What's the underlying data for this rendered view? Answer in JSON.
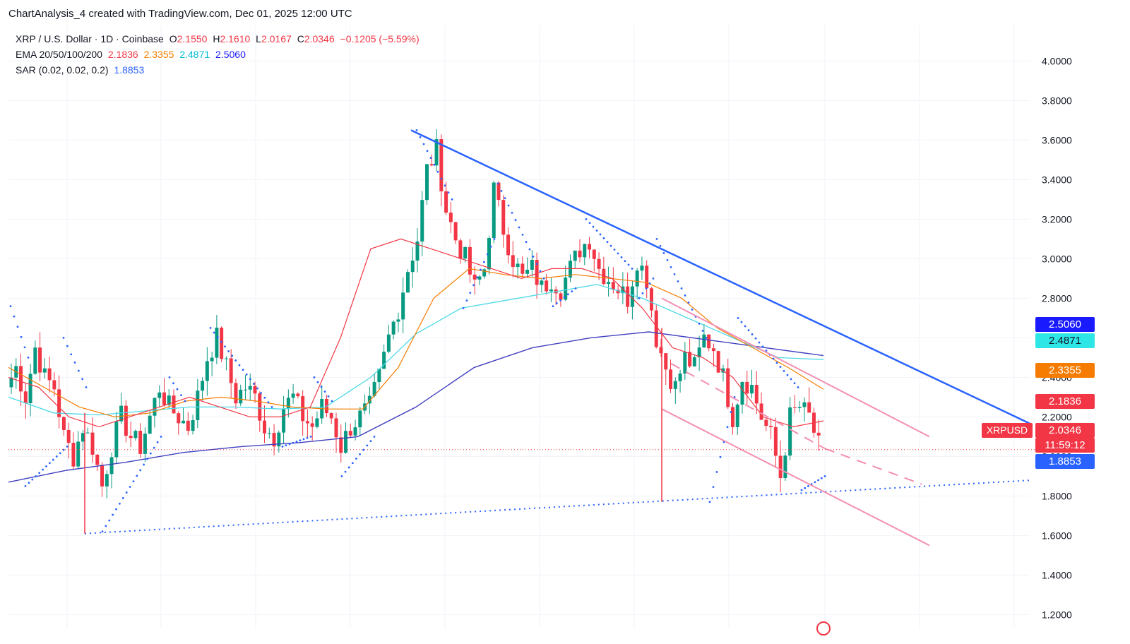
{
  "header": {
    "title": "ChartAnalysis_4 created with TradingView.com, Dec 01, 2025 12:00 UTC"
  },
  "legend": {
    "symbol": "XRP / U.S. Dollar · 1D · Coinbase",
    "o_label": "O",
    "o_value": "2.1550",
    "h_label": "H",
    "h_value": "2.1610",
    "l_label": "L",
    "l_value": "2.0167",
    "c_label": "C",
    "c_value": "2.0346",
    "change": "−0.1205 (−5.59%)",
    "ema_label": "EMA 20/50/100/200",
    "ema20": "2.1836",
    "ema50": "2.3355",
    "ema100": "2.4871",
    "ema200": "2.5060",
    "sar_label": "SAR (0.02, 0.02, 0.2)",
    "sar_value": "1.8853"
  },
  "price_tags": {
    "ema200": "2.5060",
    "ema100": "2.4871",
    "ema50": "2.3355",
    "ema20": "2.1836",
    "symbol": "XRPUSD",
    "last": "2.0346",
    "countdown": "11:59:12",
    "sar": "1.8853"
  },
  "colors": {
    "up": "#089981",
    "down": "#f23645",
    "ema20": "#f23645",
    "ema50": "#f57c00",
    "ema100": "#4dd9e8",
    "ema200": "#3f3fbf",
    "sar": "#2962ff",
    "trend_blue": "#2962ff",
    "channel": "#f48fb1"
  },
  "chart_data": {
    "type": "candlestick",
    "y_axis": {
      "ticks": [
        "4.0000",
        "3.8000",
        "3.6000",
        "3.4000",
        "3.2000",
        "3.0000",
        "2.8000",
        "2.6000",
        "2.4000",
        "2.2000",
        "2.0000",
        "1.8000",
        "1.6000",
        "1.4000",
        "1.2000"
      ],
      "range": [
        1.13,
        4.18
      ]
    },
    "ohlc_path": [
      2.35,
      2.45,
      2.3,
      2.55,
      2.4,
      2.35,
      2.1,
      2.0,
      2.15,
      2.05,
      1.85,
      2.05,
      2.2,
      2.1,
      2.05,
      2.2,
      2.35,
      2.25,
      2.2,
      2.15,
      2.3,
      2.5,
      2.6,
      2.45,
      2.3,
      2.35,
      2.3,
      2.15,
      2.1,
      2.25,
      2.3,
      2.2,
      2.15,
      2.25,
      2.2,
      2.05,
      2.15,
      2.2,
      2.25,
      2.4,
      2.6,
      2.75,
      2.95,
      3.1,
      3.45,
      3.55,
      3.25,
      3.1,
      3.0,
      2.85,
      2.95,
      3.35,
      3.15,
      3.0,
      2.9,
      2.95,
      2.85,
      2.9,
      2.85,
      2.95,
      3.05,
      3.1,
      2.95,
      2.9,
      2.85,
      2.8,
      3.0,
      2.9,
      2.6,
      2.45,
      2.35,
      2.5,
      2.45,
      2.6,
      2.55,
      2.4,
      2.2,
      2.4,
      2.35,
      2.2,
      2.1,
      1.9,
      2.2,
      2.25,
      2.2,
      2.05
    ],
    "ema20_path": [
      2.4,
      2.35,
      2.2,
      2.15,
      2.2,
      2.25,
      2.3,
      2.25,
      2.2,
      2.2,
      2.25,
      2.6,
      3.05,
      3.1,
      3.05,
      3.0,
      2.95,
      2.9,
      2.95,
      2.95,
      2.9,
      2.75,
      2.55,
      2.5,
      2.4,
      2.2,
      2.15,
      2.18
    ],
    "ema50_path": [
      2.45,
      2.35,
      2.25,
      2.2,
      2.22,
      2.28,
      2.3,
      2.28,
      2.25,
      2.24,
      2.24,
      2.45,
      2.8,
      2.95,
      2.92,
      2.9,
      2.92,
      2.9,
      2.88,
      2.8,
      2.65,
      2.55,
      2.45,
      2.34
    ],
    "ema100_path": [
      2.3,
      2.22,
      2.21,
      2.23,
      2.25,
      2.25,
      2.24,
      2.25,
      2.4,
      2.62,
      2.75,
      2.79,
      2.83,
      2.87,
      2.8,
      2.7,
      2.6,
      2.5,
      2.49
    ],
    "ema200_path": [
      1.87,
      1.93,
      1.97,
      2.02,
      2.05,
      2.07,
      2.1,
      2.25,
      2.45,
      2.55,
      2.6,
      2.63,
      2.59,
      2.55,
      2.51
    ],
    "sar_value": 1.8853,
    "last_price": 2.0346,
    "trendlines": [
      {
        "name": "descending-resistance",
        "from": [
          3.65
        ],
        "to": [
          2.16
        ]
      },
      {
        "name": "ascending-support",
        "from": [
          1.61
        ],
        "to": [
          1.88
        ]
      },
      {
        "name": "channel-upper",
        "from": [
          2.8
        ],
        "to": [
          2.1
        ]
      },
      {
        "name": "channel-lower",
        "from": [
          2.24
        ],
        "to": [
          1.55
        ]
      }
    ]
  }
}
